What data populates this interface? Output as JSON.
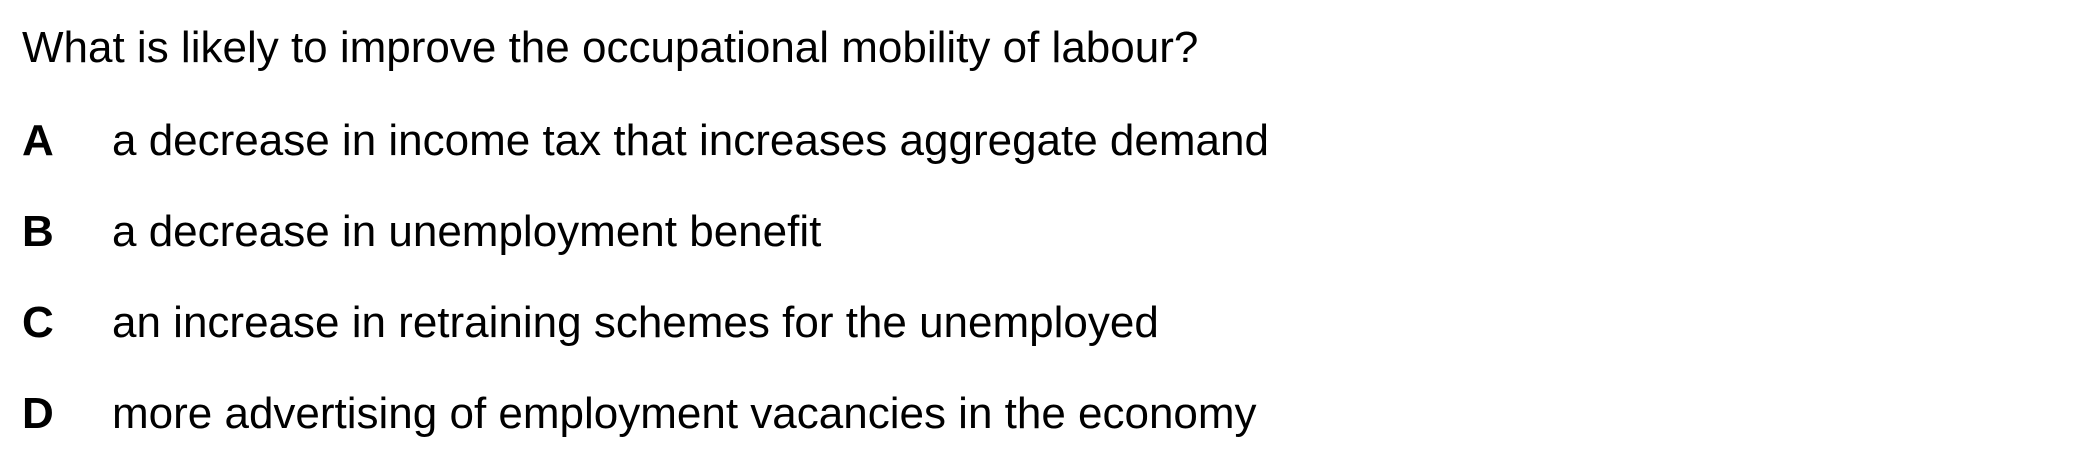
{
  "question": {
    "text": "What is likely to improve the occupational mobility of labour?"
  },
  "options": [
    {
      "letter": "A",
      "text": "a decrease in income tax that increases aggregate demand"
    },
    {
      "letter": "B",
      "text": "a decrease in unemployment benefit"
    },
    {
      "letter": "C",
      "text": "an increase in retraining schemes for the unemployed"
    },
    {
      "letter": "D",
      "text": "more advertising of employment vacancies in the economy"
    }
  ]
}
